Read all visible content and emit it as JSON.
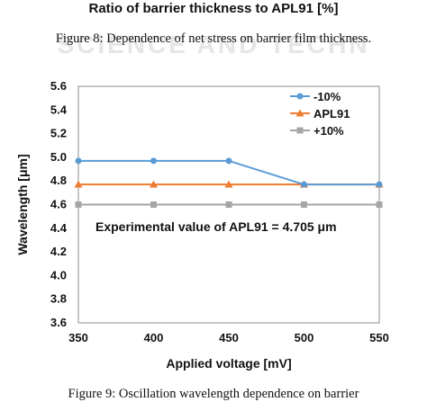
{
  "previous_figure": {
    "title": "Ratio of barrier thickness to APL91 [%]",
    "watermark": "SCIENCE AND TECHN",
    "caption": "Figure 8: Dependence of net stress on barrier film thickness."
  },
  "next_caption": "Figure 9: Oscillation wavelength dependence on barrier",
  "chart_data": {
    "type": "line",
    "title": "",
    "xlabel": "Applied voltage [mV]",
    "ylabel": "Wavelength [μm]",
    "x": [
      350,
      400,
      450,
      500,
      550
    ],
    "xlim": [
      350,
      550
    ],
    "ylim": [
      3.6,
      5.6
    ],
    "xticks": [
      "350",
      "400",
      "450",
      "500",
      "550"
    ],
    "yticks": [
      "3.6",
      "3.8",
      "4.0",
      "4.2",
      "4.4",
      "4.6",
      "4.8",
      "5.0",
      "5.2",
      "5.4",
      "5.6"
    ],
    "grid": false,
    "legend_position": "top-right",
    "series": [
      {
        "name": "-10%",
        "values": [
          4.97,
          4.97,
          4.97,
          4.77,
          4.77
        ],
        "color": "#5b9bd5",
        "marker": "circle"
      },
      {
        "name": "APL91",
        "values": [
          4.77,
          4.77,
          4.77,
          4.77,
          4.77
        ],
        "color": "#ed7d31",
        "marker": "triangle"
      },
      {
        "name": "+10%",
        "values": [
          4.6,
          4.6,
          4.6,
          4.6,
          4.6
        ],
        "color": "#a5a5a5",
        "marker": "square"
      }
    ],
    "annotation": "Experimental value of APL91 = 4.705 μm"
  }
}
